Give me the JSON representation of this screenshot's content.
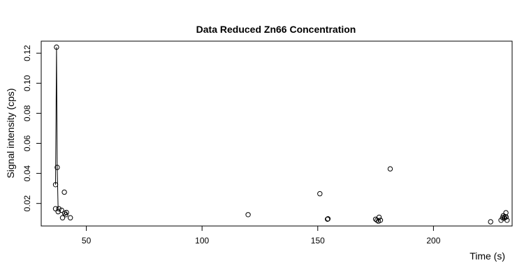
{
  "chart_data": {
    "type": "scatter",
    "title": "Data Reduced Zn66 Concentration",
    "xlabel": "Time (s)",
    "ylabel": "Signal intensity (cps)",
    "xlim": [
      30.5,
      234
    ],
    "ylim": [
      0.005,
      0.128
    ],
    "x_ticks": [
      50,
      100,
      150,
      200
    ],
    "y_ticks": [
      0.02,
      0.04,
      0.06,
      0.08,
      0.1,
      0.12
    ],
    "x_tick_labels": [
      "50",
      "100",
      "150",
      "200"
    ],
    "y_tick_labels": [
      "0.02",
      "0.04",
      "0.06",
      "0.08",
      "0.10",
      "0.12"
    ],
    "grid": false,
    "legend": "none",
    "line_series": {
      "x": [
        36.7,
        37.1,
        37.4,
        37.8
      ],
      "y": [
        0.0325,
        0.124,
        0.044,
        0.016
      ]
    },
    "points": {
      "x": [
        37.1,
        36.7,
        37.4,
        36.7,
        37.8,
        38.1,
        39.3,
        39.7,
        40.5,
        40.6,
        41.1,
        41.4,
        43.1,
        119.9,
        150.9,
        154.2,
        154.4,
        175.0,
        175.6,
        176.2,
        176.5,
        177.1,
        181.3,
        224.7,
        229.2,
        229.9,
        230.2,
        230.6,
        230.9,
        231.3,
        231.4,
        231.8
      ],
      "y": [
        0.124,
        0.0325,
        0.044,
        0.0165,
        0.0145,
        0.0165,
        0.0155,
        0.0105,
        0.0275,
        0.0135,
        0.0125,
        0.014,
        0.0105,
        0.0125,
        0.0265,
        0.0095,
        0.0098,
        0.0095,
        0.0088,
        0.0082,
        0.0108,
        0.0088,
        0.043,
        0.0078,
        0.0088,
        0.0105,
        0.0118,
        0.0102,
        0.0112,
        0.0138,
        0.011,
        0.0088
      ]
    }
  }
}
